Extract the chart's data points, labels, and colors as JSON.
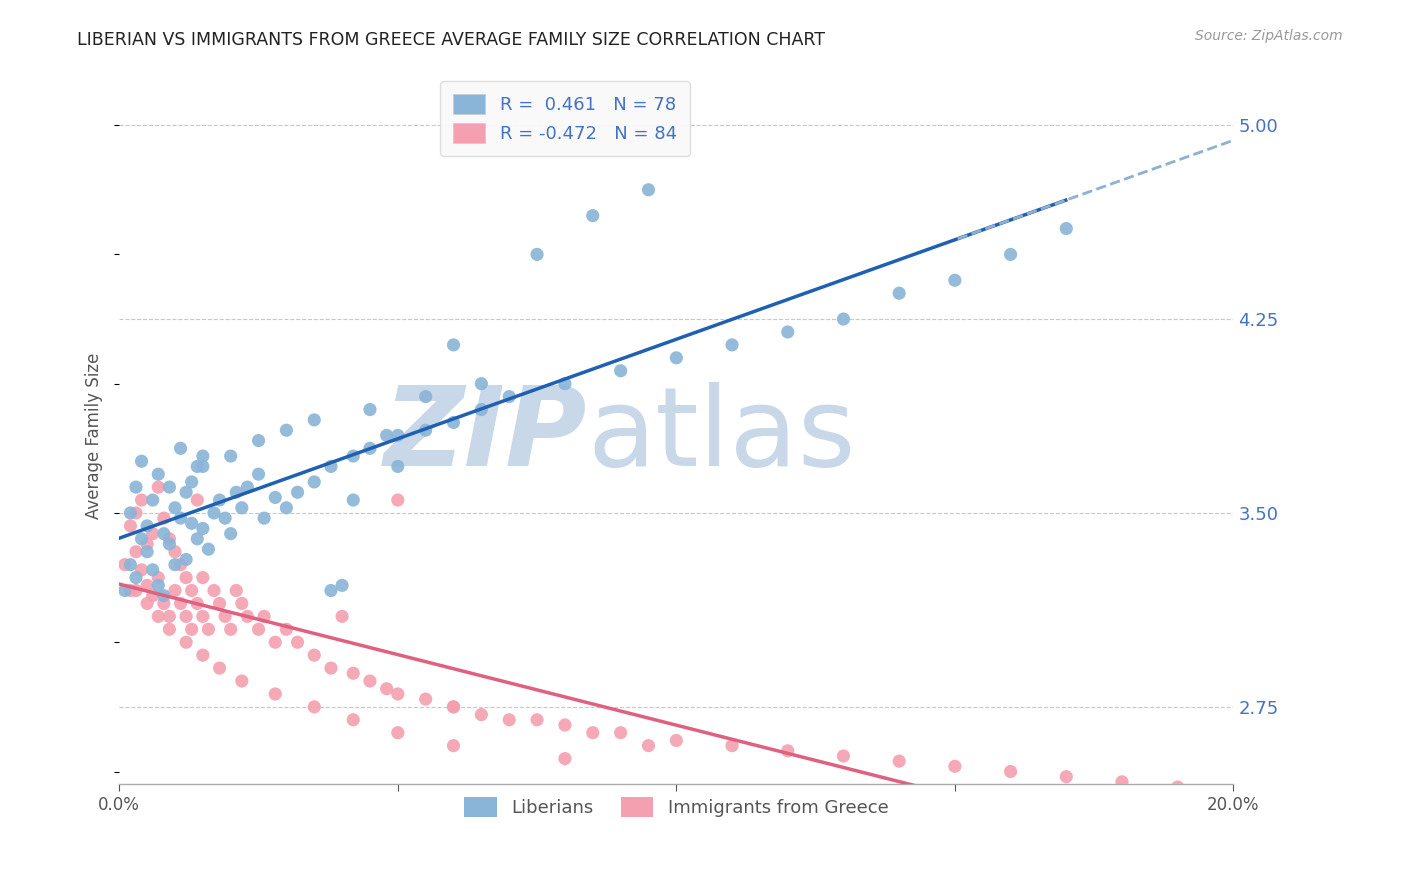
{
  "title": "LIBERIAN VS IMMIGRANTS FROM GREECE AVERAGE FAMILY SIZE CORRELATION CHART",
  "source": "Source: ZipAtlas.com",
  "ylabel": "Average Family Size",
  "xlim": [
    0.0,
    0.2
  ],
  "ylim": [
    2.45,
    5.15
  ],
  "yticks": [
    2.75,
    3.5,
    4.25,
    5.0
  ],
  "xticks": [
    0.0,
    0.05,
    0.1,
    0.15,
    0.2
  ],
  "xticklabels": [
    "0.0%",
    "",
    "",
    "",
    "20.0%"
  ],
  "right_ytick_labels": [
    "2.75",
    "3.50",
    "4.25",
    "5.00"
  ],
  "liberian_R": 0.461,
  "liberian_N": 78,
  "greece_R": -0.472,
  "greece_N": 84,
  "liberian_color": "#8ab4d8",
  "greece_color": "#f4a0b0",
  "liberian_line_color": "#2060b0",
  "greece_line_color": "#e06080",
  "trend_dash_color": "#90b0d0",
  "background_color": "#ffffff",
  "grid_color": "#c8c8c8",
  "watermark_text_color": "#c8d8e8",
  "title_color": "#222222",
  "axis_label_color": "#555555",
  "right_axis_color": "#4472c4",
  "liberian_scatter_x": [
    0.001,
    0.002,
    0.002,
    0.003,
    0.003,
    0.004,
    0.004,
    0.005,
    0.005,
    0.006,
    0.006,
    0.007,
    0.007,
    0.008,
    0.008,
    0.009,
    0.009,
    0.01,
    0.01,
    0.011,
    0.011,
    0.012,
    0.012,
    0.013,
    0.013,
    0.014,
    0.014,
    0.015,
    0.015,
    0.016,
    0.017,
    0.018,
    0.019,
    0.02,
    0.021,
    0.022,
    0.023,
    0.025,
    0.026,
    0.028,
    0.03,
    0.032,
    0.035,
    0.038,
    0.04,
    0.042,
    0.045,
    0.048,
    0.05,
    0.055,
    0.06,
    0.065,
    0.07,
    0.08,
    0.09,
    0.1,
    0.11,
    0.12,
    0.13,
    0.14,
    0.15,
    0.16,
    0.17,
    0.05,
    0.06,
    0.075,
    0.085,
    0.095,
    0.038,
    0.042,
    0.015,
    0.02,
    0.025,
    0.03,
    0.035,
    0.045,
    0.055,
    0.065
  ],
  "liberian_scatter_y": [
    3.2,
    3.3,
    3.5,
    3.25,
    3.6,
    3.4,
    3.7,
    3.35,
    3.45,
    3.28,
    3.55,
    3.22,
    3.65,
    3.18,
    3.42,
    3.6,
    3.38,
    3.3,
    3.52,
    3.48,
    3.75,
    3.32,
    3.58,
    3.46,
    3.62,
    3.4,
    3.68,
    3.44,
    3.72,
    3.36,
    3.5,
    3.55,
    3.48,
    3.42,
    3.58,
    3.52,
    3.6,
    3.65,
    3.48,
    3.56,
    3.52,
    3.58,
    3.62,
    3.68,
    3.22,
    3.72,
    3.75,
    3.8,
    3.68,
    3.82,
    3.85,
    3.9,
    3.95,
    4.0,
    4.05,
    4.1,
    4.15,
    4.2,
    4.25,
    4.35,
    4.4,
    4.5,
    4.6,
    3.8,
    4.15,
    4.5,
    4.65,
    4.75,
    3.2,
    3.55,
    3.68,
    3.72,
    3.78,
    3.82,
    3.86,
    3.9,
    3.95,
    4.0
  ],
  "greece_scatter_x": [
    0.001,
    0.002,
    0.002,
    0.003,
    0.003,
    0.004,
    0.004,
    0.005,
    0.005,
    0.006,
    0.006,
    0.007,
    0.007,
    0.008,
    0.008,
    0.009,
    0.009,
    0.01,
    0.01,
    0.011,
    0.011,
    0.012,
    0.012,
    0.013,
    0.013,
    0.014,
    0.014,
    0.015,
    0.015,
    0.016,
    0.017,
    0.018,
    0.019,
    0.02,
    0.021,
    0.022,
    0.023,
    0.025,
    0.026,
    0.028,
    0.03,
    0.032,
    0.035,
    0.038,
    0.04,
    0.042,
    0.045,
    0.048,
    0.05,
    0.055,
    0.06,
    0.065,
    0.07,
    0.08,
    0.09,
    0.1,
    0.11,
    0.12,
    0.13,
    0.14,
    0.15,
    0.16,
    0.17,
    0.18,
    0.19,
    0.05,
    0.06,
    0.075,
    0.085,
    0.095,
    0.003,
    0.005,
    0.007,
    0.009,
    0.012,
    0.015,
    0.018,
    0.022,
    0.028,
    0.035,
    0.042,
    0.05,
    0.06,
    0.08
  ],
  "greece_scatter_y": [
    3.3,
    3.45,
    3.2,
    3.35,
    3.5,
    3.28,
    3.55,
    3.22,
    3.38,
    3.18,
    3.42,
    3.6,
    3.25,
    3.48,
    3.15,
    3.4,
    3.1,
    3.35,
    3.2,
    3.3,
    3.15,
    3.25,
    3.1,
    3.2,
    3.05,
    3.15,
    3.55,
    3.1,
    3.25,
    3.05,
    3.2,
    3.15,
    3.1,
    3.05,
    3.2,
    3.15,
    3.1,
    3.05,
    3.1,
    3.0,
    3.05,
    3.0,
    2.95,
    2.9,
    3.1,
    2.88,
    2.85,
    2.82,
    2.8,
    2.78,
    2.75,
    2.72,
    2.7,
    2.68,
    2.65,
    2.62,
    2.6,
    2.58,
    2.56,
    2.54,
    2.52,
    2.5,
    2.48,
    2.46,
    2.44,
    3.55,
    2.75,
    2.7,
    2.65,
    2.6,
    3.2,
    3.15,
    3.1,
    3.05,
    3.0,
    2.95,
    2.9,
    2.85,
    2.8,
    2.75,
    2.7,
    2.65,
    2.6,
    2.55
  ]
}
